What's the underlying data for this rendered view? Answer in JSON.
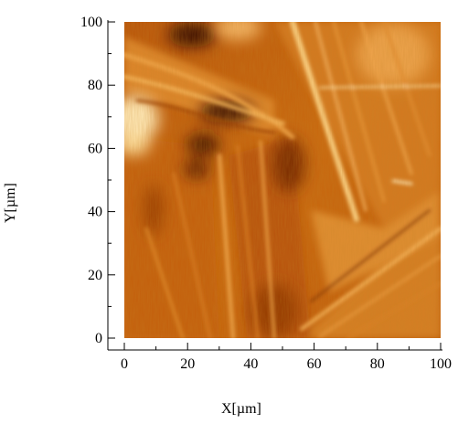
{
  "figure": {
    "x_axis_label": "X[µm]",
    "y_axis_label": "Y[µm]",
    "x_ticks": [
      "0",
      "20",
      "40",
      "60",
      "80",
      "100"
    ],
    "y_ticks": [
      "0",
      "20",
      "40",
      "60",
      "80",
      "100"
    ],
    "x_range": [
      0,
      100
    ],
    "y_range": [
      0,
      100
    ],
    "colormap": [
      "#3a1000",
      "#8a3a06",
      "#c2640f",
      "#e19a3f",
      "#ffe9b8"
    ]
  }
}
